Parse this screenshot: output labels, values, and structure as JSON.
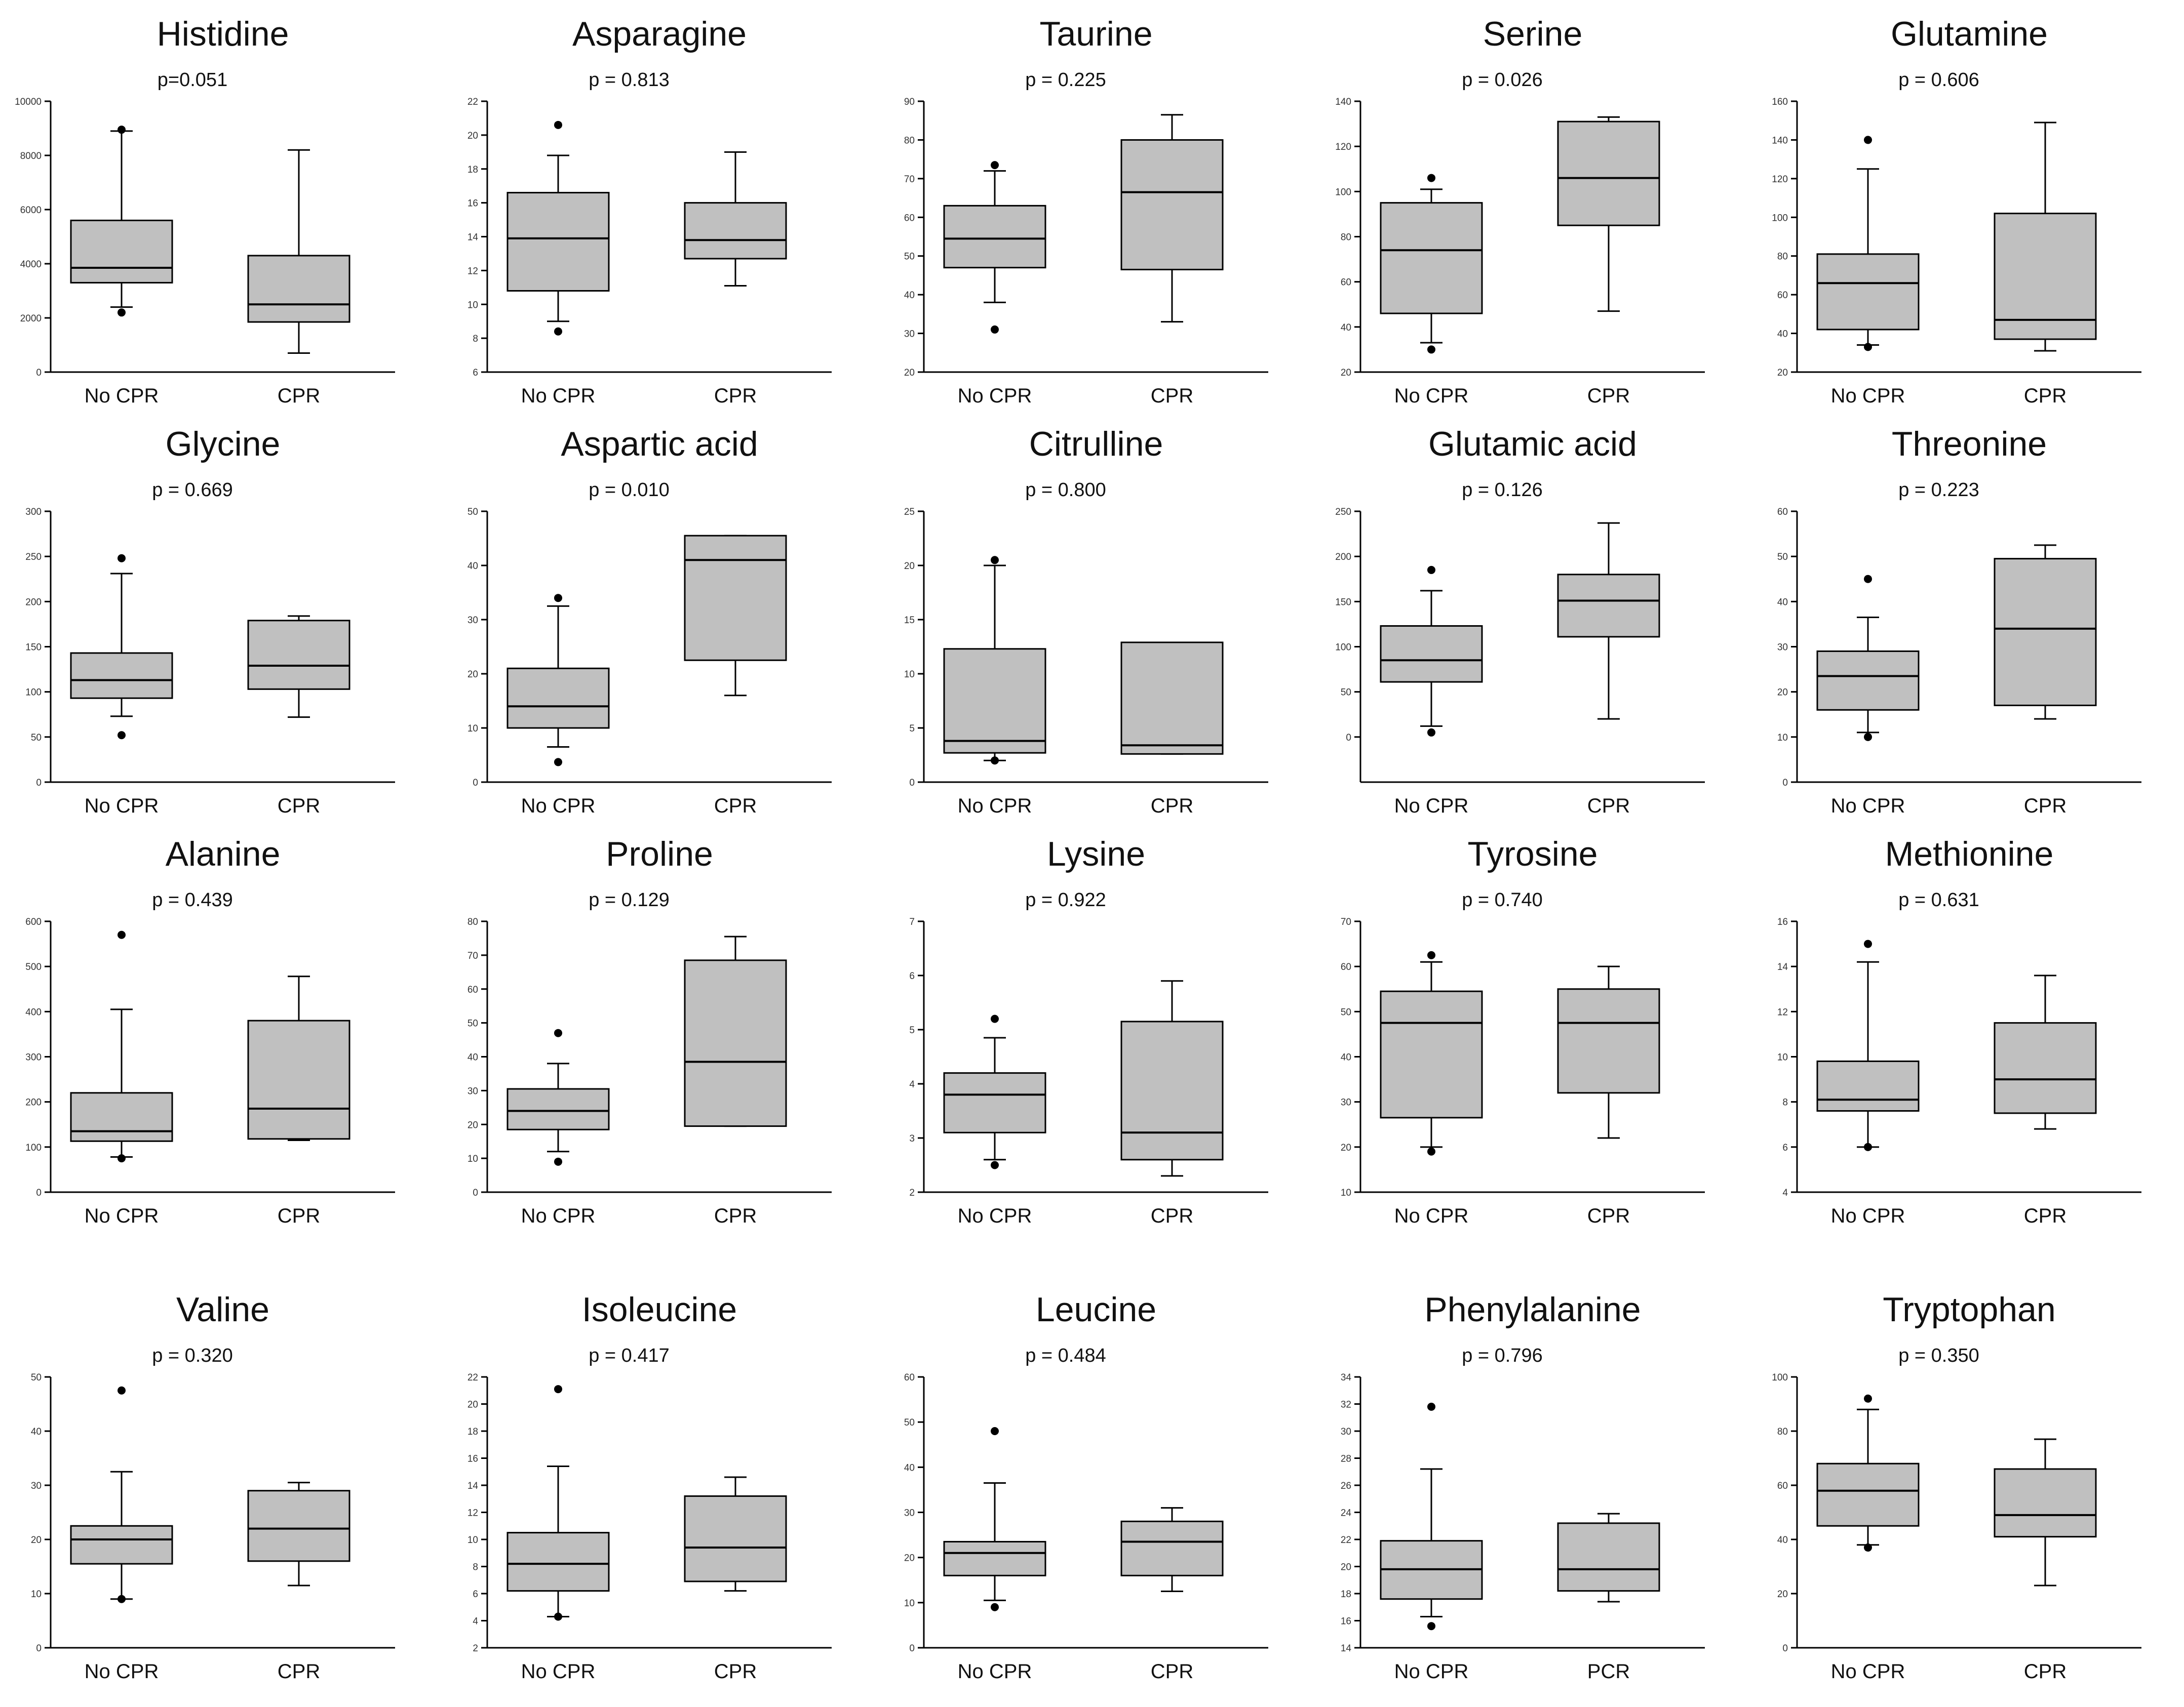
{
  "chart_data": [
    {
      "type": "box",
      "title": "Histidine",
      "p_label": "p=0.051",
      "ylim": [
        0,
        10000
      ],
      "yticks": [
        0,
        2000,
        4000,
        6000,
        8000,
        10000
      ],
      "groups": [
        {
          "label": "No CPR",
          "whisker_low": 2400,
          "q1": 3300,
          "median": 3850,
          "q3": 5600,
          "whisker_high": 8900,
          "outliers": [
            2200,
            8950
          ]
        },
        {
          "label": "CPR",
          "whisker_low": 700,
          "q1": 1850,
          "median": 2500,
          "q3": 4300,
          "whisker_high": 8200,
          "outliers": []
        }
      ]
    },
    {
      "type": "box",
      "title": "Asparagine",
      "p_label": "p = 0.813",
      "ylim": [
        6,
        22
      ],
      "yticks": [
        6,
        8,
        10,
        12,
        14,
        16,
        18,
        20,
        22
      ],
      "groups": [
        {
          "label": "No CPR",
          "whisker_low": 9,
          "q1": 10.8,
          "median": 13.9,
          "q3": 16.6,
          "whisker_high": 18.8,
          "outliers": [
            8.4,
            20.6
          ]
        },
        {
          "label": "CPR",
          "whisker_low": 11.1,
          "q1": 12.7,
          "median": 13.8,
          "q3": 16,
          "whisker_high": 19,
          "outliers": []
        }
      ]
    },
    {
      "type": "box",
      "title": "Taurine",
      "p_label": "p = 0.225",
      "ylim": [
        20,
        90
      ],
      "yticks": [
        20,
        30,
        40,
        50,
        60,
        70,
        80,
        90
      ],
      "groups": [
        {
          "label": "No CPR",
          "whisker_low": 38,
          "q1": 47,
          "median": 54.5,
          "q3": 63,
          "whisker_high": 72,
          "outliers": [
            31,
            73.5
          ]
        },
        {
          "label": "CPR",
          "whisker_low": 33,
          "q1": 46.5,
          "median": 66.5,
          "q3": 80,
          "whisker_high": 86.5,
          "outliers": []
        }
      ]
    },
    {
      "type": "box",
      "title": "Serine",
      "p_label": "p = 0.026",
      "ylim": [
        20,
        140
      ],
      "yticks": [
        20,
        40,
        60,
        80,
        100,
        120,
        140
      ],
      "groups": [
        {
          "label": "No CPR",
          "whisker_low": 33,
          "q1": 46,
          "median": 74,
          "q3": 95,
          "whisker_high": 101,
          "outliers": [
            30,
            106
          ]
        },
        {
          "label": "CPR",
          "whisker_low": 47,
          "q1": 85,
          "median": 106,
          "q3": 131,
          "whisker_high": 133,
          "outliers": []
        }
      ]
    },
    {
      "type": "box",
      "title": "Glutamine",
      "p_label": "p = 0.606",
      "ylim": [
        20,
        160
      ],
      "yticks": [
        20,
        40,
        60,
        80,
        100,
        120,
        140,
        160
      ],
      "groups": [
        {
          "label": "No CPR",
          "whisker_low": 34,
          "q1": 42,
          "median": 66,
          "q3": 81,
          "whisker_high": 125,
          "outliers": [
            33,
            140
          ]
        },
        {
          "label": "CPR",
          "whisker_low": 31,
          "q1": 37,
          "median": 47,
          "q3": 102,
          "whisker_high": 149,
          "outliers": []
        }
      ]
    },
    {
      "type": "box",
      "title": "Glycine",
      "p_label": "p = 0.669",
      "ylim": [
        0,
        300
      ],
      "yticks": [
        0,
        50,
        100,
        150,
        200,
        250,
        300
      ],
      "groups": [
        {
          "label": "No CPR",
          "whisker_low": 73,
          "q1": 93,
          "median": 113,
          "q3": 143,
          "whisker_high": 231,
          "outliers": [
            52,
            248
          ]
        },
        {
          "label": "CPR",
          "whisker_low": 72,
          "q1": 103,
          "median": 129,
          "q3": 179,
          "whisker_high": 184,
          "outliers": []
        }
      ]
    },
    {
      "type": "box",
      "title": "Aspartic acid",
      "p_label": "p = 0.010",
      "ylim": [
        0,
        50
      ],
      "yticks": [
        0,
        10,
        20,
        30,
        40,
        50
      ],
      "groups": [
        {
          "label": "No CPR",
          "whisker_low": 6.5,
          "q1": 10,
          "median": 14,
          "q3": 21,
          "whisker_high": 32.5,
          "outliers": [
            3.7,
            34
          ]
        },
        {
          "label": "CPR",
          "whisker_low": 16,
          "q1": 22.5,
          "median": 41,
          "q3": 45.5,
          "whisker_high": 45.5,
          "outliers": []
        }
      ]
    },
    {
      "type": "box",
      "title": "Citrulline",
      "p_label": "p = 0.800",
      "ylim": [
        0,
        25
      ],
      "yticks": [
        0,
        5,
        10,
        15,
        20,
        25
      ],
      "groups": [
        {
          "label": "No CPR",
          "whisker_low": 2,
          "q1": 2.7,
          "median": 3.8,
          "q3": 12.3,
          "whisker_high": 20,
          "outliers": [
            2,
            20.5
          ]
        },
        {
          "label": "CPR",
          "whisker_low": 2.6,
          "q1": 2.6,
          "median": 3.4,
          "q3": 12.9,
          "whisker_high": 12.9,
          "outliers": []
        }
      ]
    },
    {
      "type": "box",
      "title": "Glutamic acid",
      "p_label": "p = 0.126",
      "ylim": [
        -50,
        250
      ],
      "yticks": [
        0,
        50,
        100,
        150,
        200,
        250
      ],
      "groups": [
        {
          "label": "No CPR",
          "whisker_low": 12,
          "q1": 61,
          "median": 85,
          "q3": 123,
          "whisker_high": 162,
          "outliers": [
            5,
            185
          ]
        },
        {
          "label": "CPR",
          "whisker_low": 20,
          "q1": 111,
          "median": 151,
          "q3": 180,
          "whisker_high": 237,
          "outliers": []
        }
      ]
    },
    {
      "type": "box",
      "title": "Threonine",
      "p_label": "p = 0.223",
      "ylim": [
        0,
        60
      ],
      "yticks": [
        0,
        10,
        20,
        30,
        40,
        50,
        60
      ],
      "groups": [
        {
          "label": "No CPR",
          "whisker_low": 11,
          "q1": 16,
          "median": 23.5,
          "q3": 29,
          "whisker_high": 36.5,
          "outliers": [
            10,
            45
          ]
        },
        {
          "label": "CPR",
          "whisker_low": 14,
          "q1": 17,
          "median": 34,
          "q3": 49.5,
          "whisker_high": 52.5,
          "outliers": []
        }
      ]
    },
    {
      "type": "box",
      "title": "Alanine",
      "p_label": "p = 0.439",
      "ylim": [
        0,
        600
      ],
      "yticks": [
        0,
        100,
        200,
        300,
        400,
        500,
        600
      ],
      "groups": [
        {
          "label": "No CPR",
          "whisker_low": 78,
          "q1": 113,
          "median": 135,
          "q3": 220,
          "whisker_high": 405,
          "outliers": [
            75,
            570
          ]
        },
        {
          "label": "CPR",
          "whisker_low": 115,
          "q1": 118,
          "median": 185,
          "q3": 380,
          "whisker_high": 478,
          "outliers": []
        }
      ]
    },
    {
      "type": "box",
      "title": "Proline",
      "p_label": "p = 0.129",
      "ylim": [
        0,
        80
      ],
      "yticks": [
        0,
        10,
        20,
        30,
        40,
        50,
        60,
        70,
        80
      ],
      "groups": [
        {
          "label": "No CPR",
          "whisker_low": 12,
          "q1": 18.5,
          "median": 24,
          "q3": 30.5,
          "whisker_high": 38,
          "outliers": [
            9,
            47
          ]
        },
        {
          "label": "CPR",
          "whisker_low": 19.5,
          "q1": 19.5,
          "median": 38.5,
          "q3": 68.5,
          "whisker_high": 75.5,
          "outliers": []
        }
      ]
    },
    {
      "type": "box",
      "title": "Lysine",
      "p_label": "p = 0.922",
      "ylim": [
        2,
        7
      ],
      "yticks": [
        2,
        3,
        4,
        5,
        6,
        7
      ],
      "groups": [
        {
          "label": "No CPR",
          "whisker_low": 2.6,
          "q1": 3.1,
          "median": 3.8,
          "q3": 4.2,
          "whisker_high": 4.85,
          "outliers": [
            2.5,
            5.2
          ]
        },
        {
          "label": "CPR",
          "whisker_low": 2.3,
          "q1": 2.6,
          "median": 3.1,
          "q3": 5.15,
          "whisker_high": 5.9,
          "outliers": []
        }
      ]
    },
    {
      "type": "box",
      "title": "Tyrosine",
      "p_label": "p = 0.740",
      "ylim": [
        10,
        70
      ],
      "yticks": [
        10,
        20,
        30,
        40,
        50,
        60,
        70
      ],
      "groups": [
        {
          "label": "No CPR",
          "whisker_low": 20,
          "q1": 26.5,
          "median": 47.5,
          "q3": 54.5,
          "whisker_high": 61,
          "outliers": [
            19,
            62.5
          ]
        },
        {
          "label": "CPR",
          "whisker_low": 22,
          "q1": 32,
          "median": 47.5,
          "q3": 55,
          "whisker_high": 60,
          "outliers": []
        }
      ]
    },
    {
      "type": "box",
      "title": "Methionine",
      "p_label": "p = 0.631",
      "ylim": [
        4,
        16
      ],
      "yticks": [
        4,
        6,
        8,
        10,
        12,
        14,
        16
      ],
      "groups": [
        {
          "label": "No CPR",
          "whisker_low": 6,
          "q1": 7.6,
          "median": 8.1,
          "q3": 9.8,
          "whisker_high": 14.2,
          "outliers": [
            6,
            15
          ]
        },
        {
          "label": "CPR",
          "whisker_low": 6.8,
          "q1": 7.5,
          "median": 9,
          "q3": 11.5,
          "whisker_high": 13.6,
          "outliers": []
        }
      ]
    },
    {
      "type": "box",
      "title": "Valine",
      "p_label": "p = 0.320",
      "ylim": [
        0,
        50
      ],
      "yticks": [
        0,
        10,
        20,
        30,
        40,
        50
      ],
      "groups": [
        {
          "label": "No CPR",
          "whisker_low": 9,
          "q1": 15.5,
          "median": 20,
          "q3": 22.5,
          "whisker_high": 32.5,
          "outliers": [
            9,
            47.5
          ]
        },
        {
          "label": "CPR",
          "whisker_low": 11.5,
          "q1": 16,
          "median": 22,
          "q3": 29,
          "whisker_high": 30.5,
          "outliers": []
        }
      ]
    },
    {
      "type": "box",
      "title": "Isoleucine",
      "p_label": "p = 0.417",
      "ylim": [
        2,
        22
      ],
      "yticks": [
        2,
        4,
        6,
        8,
        10,
        12,
        14,
        16,
        18,
        20,
        22
      ],
      "groups": [
        {
          "label": "No CPR",
          "whisker_low": 4.3,
          "q1": 6.2,
          "median": 8.2,
          "q3": 10.5,
          "whisker_high": 15.4,
          "outliers": [
            4.3,
            21.1
          ]
        },
        {
          "label": "CPR",
          "whisker_low": 6.2,
          "q1": 6.9,
          "median": 9.4,
          "q3": 13.2,
          "whisker_high": 14.6,
          "outliers": []
        }
      ]
    },
    {
      "type": "box",
      "title": "Leucine",
      "p_label": "p = 0.484",
      "ylim": [
        0,
        60
      ],
      "yticks": [
        0,
        10,
        20,
        30,
        40,
        50,
        60
      ],
      "groups": [
        {
          "label": "No CPR",
          "whisker_low": 10.5,
          "q1": 16,
          "median": 21,
          "q3": 23.5,
          "whisker_high": 36.5,
          "outliers": [
            9,
            48
          ]
        },
        {
          "label": "CPR",
          "whisker_low": 12.5,
          "q1": 16,
          "median": 23.5,
          "q3": 28,
          "whisker_high": 31,
          "outliers": []
        }
      ]
    },
    {
      "type": "box",
      "title": "Phenylalanine",
      "p_label": "p = 0.796",
      "ylim": [
        14,
        34
      ],
      "yticks": [
        14,
        16,
        18,
        20,
        22,
        24,
        26,
        28,
        30,
        32,
        34
      ],
      "groups": [
        {
          "label": "No CPR",
          "whisker_low": 16.3,
          "q1": 17.6,
          "median": 19.8,
          "q3": 21.9,
          "whisker_high": 27.2,
          "outliers": [
            15.6,
            31.8
          ]
        },
        {
          "label": "PCR",
          "whisker_low": 17.4,
          "q1": 18.2,
          "median": 19.8,
          "q3": 23.2,
          "whisker_high": 23.9,
          "outliers": []
        }
      ]
    },
    {
      "type": "box",
      "title": "Tryptophan",
      "p_label": "p = 0.350",
      "ylim": [
        0,
        100
      ],
      "yticks": [
        0,
        20,
        40,
        60,
        80,
        100
      ],
      "groups": [
        {
          "label": "No CPR",
          "whisker_low": 38,
          "q1": 45,
          "median": 58,
          "q3": 68,
          "whisker_high": 88,
          "outliers": [
            37,
            92
          ]
        },
        {
          "label": "CPR",
          "whisker_low": 23,
          "q1": 41,
          "median": 49,
          "q3": 66,
          "whisker_high": 77,
          "outliers": []
        }
      ]
    }
  ],
  "colors": {
    "box_fill": "#c0c0c0",
    "line": "#000000",
    "axis": "#000000",
    "text": "#111111"
  }
}
